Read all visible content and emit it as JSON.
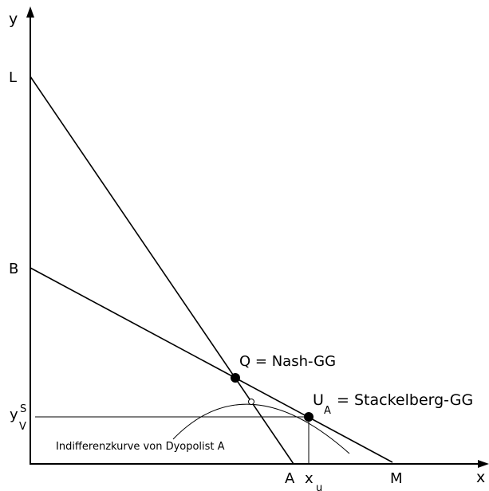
{
  "labels": {
    "y_axis": "y",
    "x_axis": "x",
    "L": "L",
    "B": "B",
    "A": "A",
    "M": "M",
    "x_main": "x",
    "x_sub": "u",
    "y_main": "y",
    "y_sub": "V",
    "y_sup": "S",
    "nash": "Q = Nash-GG",
    "stackelberg_main": "U",
    "stackelberg_sub": "A",
    "stackelberg_rest": " = Stackelberg-GG",
    "indifference": "Indifferenzkurve von Dyopolist A"
  },
  "colors": {
    "ink": "#000000",
    "background": "#ffffff"
  }
}
